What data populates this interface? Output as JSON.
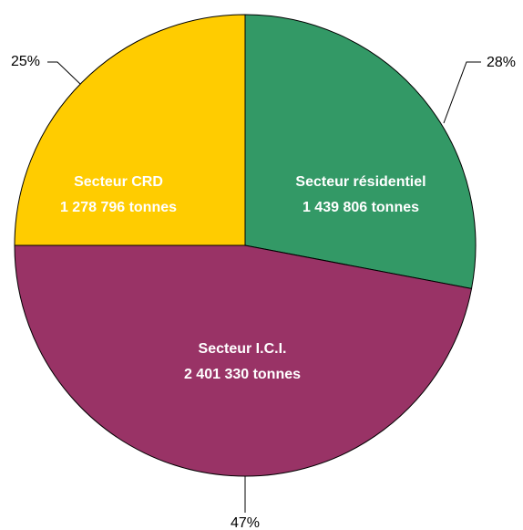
{
  "chart_data": {
    "type": "pie",
    "categories": [
      "Secteur résidentiel",
      "Secteur I.C.I.",
      "Secteur CRD"
    ],
    "values": [
      28,
      47,
      25
    ],
    "value_labels": [
      "28%",
      "47%",
      "25%"
    ],
    "tonnes": [
      "1 439 806 tonnes",
      "2 401 330 tonnes",
      "1 278 796 tonnes"
    ],
    "colors": [
      "#339966",
      "#993366",
      "#ffcc00"
    ]
  }
}
